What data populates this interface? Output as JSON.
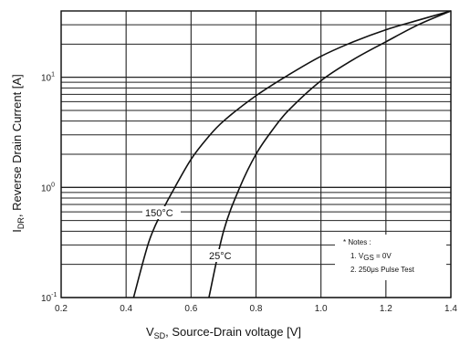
{
  "chart_data": {
    "type": "line",
    "x_scale": "linear",
    "y_scale": "log",
    "xlim": [
      0.2,
      1.4
    ],
    "ylim": [
      0.1,
      40
    ],
    "grid": true,
    "x_ticks": [
      0.2,
      0.4,
      0.6,
      0.8,
      1.0,
      1.2,
      1.4
    ],
    "x_tick_labels": [
      "0.2",
      "0.4",
      "0.6",
      "0.8",
      "1.0",
      "1.2",
      "1.4"
    ],
    "y_tick_labels": [
      {
        "value": 0.1,
        "base": "10",
        "exp": "-1"
      },
      {
        "value": 1,
        "base": "10",
        "exp": "0"
      },
      {
        "value": 10,
        "base": "10",
        "exp": "1"
      }
    ],
    "xlabel": {
      "prefix": "V",
      "sub": "SD",
      "suffix": ", Source-Drain voltage [V]"
    },
    "ylabel": {
      "prefix": "I",
      "sub": "DR",
      "suffix": ", Reverse Drain Current [A]"
    },
    "series": [
      {
        "name": "150°C",
        "label": "150°C",
        "color": "#111111",
        "x": [
          0.423,
          0.47,
          0.51,
          0.55,
          0.6,
          0.65,
          0.7,
          0.8,
          0.9,
          1.0,
          1.1,
          1.2,
          1.3,
          1.4
        ],
        "y": [
          0.1,
          0.32,
          0.6,
          1.0,
          1.8,
          2.8,
          4.0,
          6.8,
          10.5,
          15.5,
          21.0,
          27.0,
          33.0,
          40.0
        ]
      },
      {
        "name": "25°C",
        "label": "25°C",
        "color": "#111111",
        "x": [
          0.655,
          0.7,
          0.75,
          0.8,
          0.85,
          0.9,
          1.0,
          1.1,
          1.2,
          1.3,
          1.4
        ],
        "y": [
          0.1,
          0.4,
          1.0,
          2.0,
          3.3,
          5.0,
          9.3,
          14.5,
          21.0,
          30.0,
          40.0
        ]
      }
    ],
    "annotations": {
      "notes_title": "* Notes :",
      "note1": {
        "prefix": "1. V",
        "sub": "GS",
        "suffix": " = 0V"
      },
      "note2": "2. 250μs Pulse Test"
    }
  }
}
